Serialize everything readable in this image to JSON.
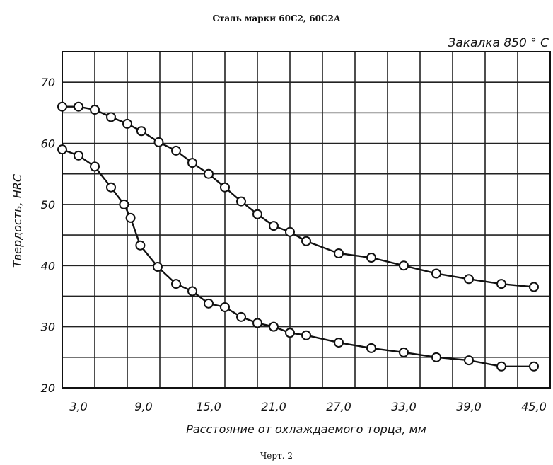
{
  "chart_data": {
    "type": "line",
    "title": "Сталь марки 60С2, 60С2А",
    "annotation": "Закалка 850 ° С",
    "caption": "Черт. 2",
    "xlabel": "Расстояние от охлаждаемого торца, мм",
    "ylabel": "Твердость, HRC",
    "xlim": [
      1.5,
      46.5
    ],
    "ylim": [
      20,
      75
    ],
    "x_ticks": [
      {
        "value": 3.0,
        "label": "3,0"
      },
      {
        "value": 9.0,
        "label": "9,0"
      },
      {
        "value": 15.0,
        "label": "15,0"
      },
      {
        "value": 21.0,
        "label": "21,0"
      },
      {
        "value": 27.0,
        "label": "27,0"
      },
      {
        "value": 33.0,
        "label": "33,0"
      },
      {
        "value": 39.0,
        "label": "39,0"
      },
      {
        "value": 45.0,
        "label": "45,0"
      }
    ],
    "y_ticks": [
      {
        "value": 20,
        "label": "20"
      },
      {
        "value": 30,
        "label": "30"
      },
      {
        "value": 40,
        "label": "40"
      },
      {
        "value": 50,
        "label": "50"
      },
      {
        "value": 60,
        "label": "60"
      },
      {
        "value": 70,
        "label": "70"
      }
    ],
    "x_grid": [
      1.5,
      4.5,
      7.5,
      10.5,
      13.5,
      16.5,
      19.5,
      22.5,
      25.5,
      28.5,
      31.5,
      34.5,
      37.5,
      40.5,
      43.5,
      46.5
    ],
    "y_grid": [
      20,
      25,
      30,
      35,
      40,
      45,
      50,
      55,
      60,
      65,
      70,
      75
    ],
    "grid": true,
    "series": [
      {
        "x": [
          1.5,
          3.0,
          4.5,
          6.0,
          7.5,
          8.8,
          10.4,
          12.0,
          13.5,
          15.0,
          16.5,
          18.0,
          19.5,
          21.0,
          22.5,
          24.0,
          27.0,
          30.0,
          33.0,
          36.0,
          39.0,
          42.0,
          45.0
        ],
        "y": [
          66.0,
          66.0,
          65.5,
          64.3,
          63.2,
          62.0,
          60.2,
          58.8,
          56.8,
          55.0,
          52.8,
          50.5,
          48.4,
          46.5,
          45.5,
          44.0,
          42.0,
          41.3,
          40.0,
          38.7,
          37.8,
          37.0,
          36.5
        ]
      },
      {
        "x": [
          1.5,
          3.0,
          4.5,
          6.0,
          7.2,
          7.8,
          8.7,
          10.3,
          12.0,
          13.5,
          15.0,
          16.5,
          18.0,
          19.5,
          21.0,
          22.5,
          24.0,
          27.0,
          30.0,
          33.0,
          36.0,
          39.0,
          42.0,
          45.0
        ],
        "y": [
          59.0,
          58.0,
          56.2,
          52.8,
          50.0,
          47.8,
          43.3,
          39.8,
          37.0,
          35.8,
          33.8,
          33.2,
          31.6,
          30.6,
          30.0,
          29.0,
          28.6,
          27.4,
          26.5,
          25.8,
          25.0,
          24.5,
          23.5,
          23.5
        ]
      }
    ]
  }
}
